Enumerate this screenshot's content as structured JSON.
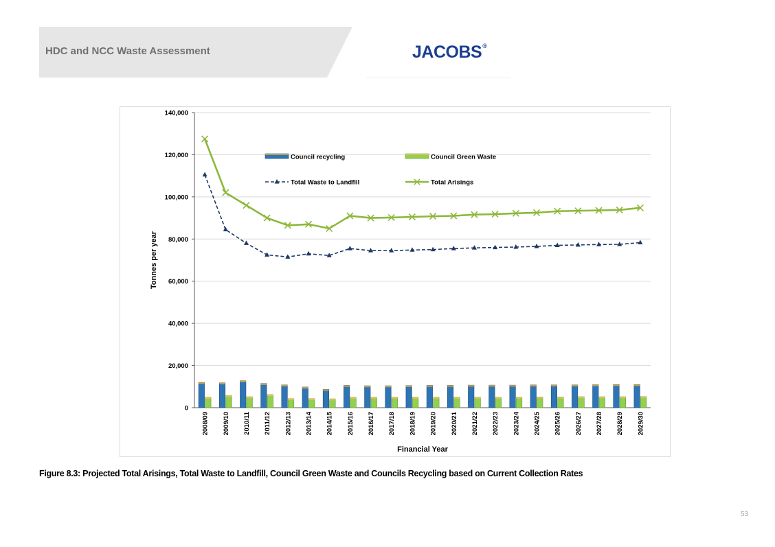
{
  "header": {
    "title": "HDC and NCC Waste Assessment",
    "logo_text": "JACOBS",
    "logo_mark": "®",
    "logo_color": "#1b3f8f",
    "band_color": "#e6e6e6"
  },
  "caption": "Figure 8.3: Projected Total Arisings, Total Waste to Landfill, Council Green Waste and Councils Recycling based on Current Collection Rates",
  "page_number": "53",
  "chart_data": {
    "type": "bar+line",
    "title": "",
    "xlabel": "Financial Year",
    "ylabel": "Tonnes per year",
    "ylim": [
      0,
      140000
    ],
    "yticks": [
      0,
      20000,
      40000,
      60000,
      80000,
      100000,
      120000,
      140000
    ],
    "ytick_labels": [
      "0",
      "20,000",
      "40,000",
      "60,000",
      "80,000",
      "100,000",
      "120,000",
      "140,000"
    ],
    "grid": true,
    "categories": [
      "2008/09",
      "2009/10",
      "2010/11",
      "2011/12",
      "2012/13",
      "2013/14",
      "2014/15",
      "2015/16",
      "2016/17",
      "2017/18",
      "2018/19",
      "2019/20",
      "2020/21",
      "2021/22",
      "2022/23",
      "2023/24",
      "2024/25",
      "2025/26",
      "2026/27",
      "2027/28",
      "2028/29",
      "2029/30"
    ],
    "series": [
      {
        "name": "Council recycling",
        "kind": "bar",
        "color": "#2e75b6",
        "values": [
          12000,
          11800,
          12800,
          11500,
          10800,
          9800,
          8700,
          10600,
          10400,
          10400,
          10500,
          10600,
          10600,
          10700,
          10700,
          10700,
          10800,
          10800,
          10800,
          10900,
          11000,
          11000
        ]
      },
      {
        "name": "Council Green Waste",
        "kind": "bar",
        "color": "#92d050",
        "values": [
          5000,
          5800,
          5200,
          6200,
          4300,
          4300,
          4200,
          5000,
          5000,
          5000,
          5000,
          5000,
          5000,
          5000,
          5000,
          5000,
          5100,
          5100,
          5200,
          5200,
          5200,
          5300
        ]
      },
      {
        "name": "Total Waste to Landfill",
        "kind": "line",
        "style": "dashed",
        "marker": "triangle",
        "color": "#1f3864",
        "values": [
          110500,
          84500,
          78000,
          72500,
          71500,
          73000,
          72200,
          75500,
          74500,
          74500,
          74800,
          75000,
          75500,
          75800,
          76000,
          76200,
          76500,
          77000,
          77200,
          77400,
          77500,
          78300
        ]
      },
      {
        "name": "Total Arisings",
        "kind": "line",
        "style": "solid",
        "marker": "x",
        "color": "#8db83b",
        "values": [
          127500,
          102000,
          96000,
          90000,
          86500,
          87000,
          85000,
          91000,
          90000,
          90200,
          90500,
          90800,
          91000,
          91600,
          91800,
          92200,
          92500,
          93200,
          93400,
          93600,
          93800,
          94800
        ]
      }
    ],
    "legend": {
      "placement": "upper-center",
      "entries": [
        "Council recycling",
        "Council Green Waste",
        "Total Waste to Landfill",
        "Total Arisings"
      ]
    }
  }
}
